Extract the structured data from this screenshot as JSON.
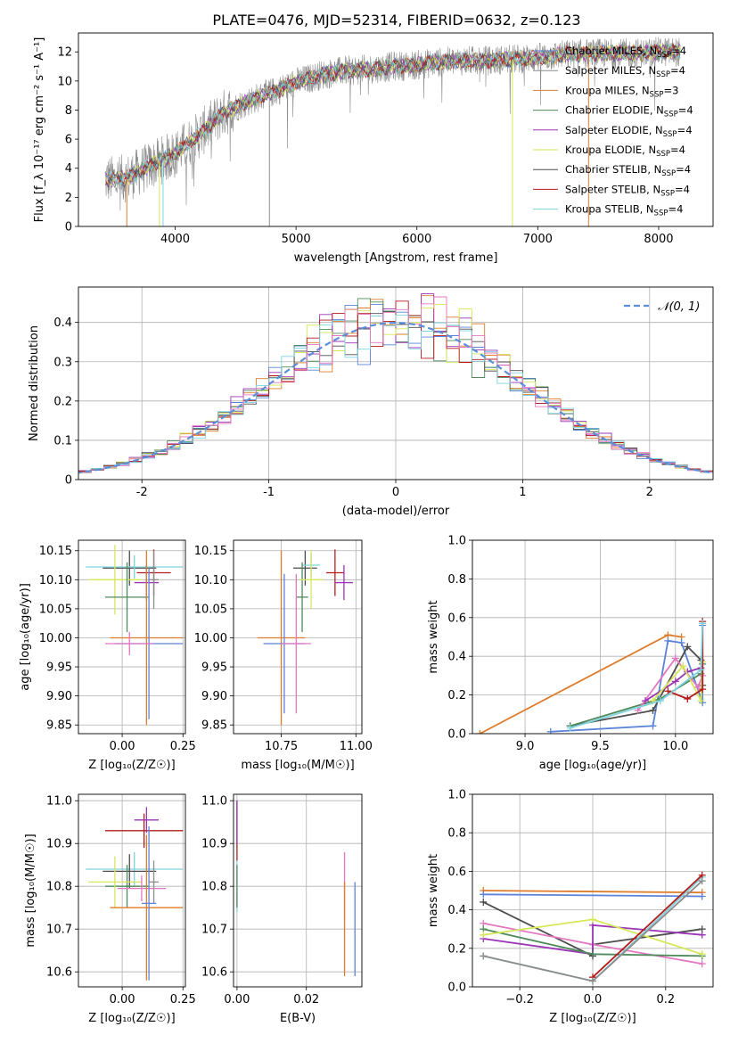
{
  "figure_title": "PLATE=0476, MJD=52314, FIBERID=0632, z=0.123",
  "colors": {
    "Chabrier MILES": "#5b84d8",
    "Salpeter MILES": "#8c8c8c",
    "Kroupa MILES": "#df7c2b",
    "Chabrier ELODIE": "#4e8a5c",
    "Salpeter ELODIE": "#9b35b5",
    "Kroupa ELODIE": "#d6e75a",
    "Chabrier STELIB": "#4d4d4d",
    "Salpeter STELIB": "#b41c1c",
    "Kroupa STELIB": "#7fd3dd",
    "Pink": "#e377c2",
    "Normal": "#5b8fd9"
  },
  "chart_data": [
    {
      "id": "spectrum",
      "type": "line",
      "title": "PLATE=0476, MJD=52314, FIBERID=0632, z=0.123",
      "xlabel": "wavelength [Angstrom, rest frame]",
      "ylabel": "Flux [f_λ 10⁻¹⁷ erg cm⁻² s⁻¹ A⁻¹]",
      "xlim": [
        3200,
        8450
      ],
      "ylim": [
        0,
        13.3
      ],
      "xticks": [
        4000,
        5000,
        6000,
        7000,
        8000
      ],
      "yticks": [
        0,
        2,
        4,
        6,
        8,
        10,
        12
      ],
      "legend_position": "top-right",
      "continuum": {
        "x": [
          3420,
          3600,
          3800,
          4000,
          4200,
          4400,
          4600,
          4800,
          5000,
          5200,
          5400,
          5600,
          5800,
          6000,
          6200,
          6400,
          6600,
          6800,
          7000,
          7200,
          7400,
          7600,
          7800,
          8000,
          8180
        ],
        "y": [
          3.2,
          3.3,
          4.2,
          5.0,
          6.3,
          7.8,
          8.6,
          9.2,
          9.9,
          10.4,
          10.7,
          10.8,
          11.0,
          11.1,
          11.3,
          11.4,
          11.4,
          11.5,
          11.6,
          11.8,
          11.9,
          11.9,
          11.9,
          12.0,
          12.0
        ]
      },
      "legend": [
        {
          "label": "Chabrier MILES, N",
          "sub": "SSP",
          "suffix": "=4",
          "color": "#5b84d8"
        },
        {
          "label": "Salpeter MILES, N",
          "sub": "SSP",
          "suffix": "=4",
          "color": "#8c8c8c"
        },
        {
          "label": "Kroupa MILES, N",
          "sub": "SSP",
          "suffix": "=3",
          "color": "#df7c2b"
        },
        {
          "label": "Chabrier ELODIE, N",
          "sub": "SSP",
          "suffix": "=4",
          "color": "#4e8a5c"
        },
        {
          "label": "Salpeter ELODIE, N",
          "sub": "SSP",
          "suffix": "=4",
          "color": "#9b35b5"
        },
        {
          "label": "Kroupa ELODIE, N",
          "sub": "SSP",
          "suffix": "=4",
          "color": "#d6e75a"
        },
        {
          "label": "Chabrier STELIB, N",
          "sub": "SSP",
          "suffix": "=4",
          "color": "#4d4d4d"
        },
        {
          "label": "Salpeter STELIB, N",
          "sub": "SSP",
          "suffix": "=4",
          "color": "#b41c1c"
        },
        {
          "label": "Kroupa STELIB, N",
          "sub": "SSP",
          "suffix": "=4",
          "color": "#7fd3dd"
        }
      ]
    },
    {
      "id": "residuals",
      "type": "area",
      "xlabel": "(data-model)/error",
      "ylabel": "Normed distribution",
      "xlim": [
        -2.5,
        2.5
      ],
      "ylim": [
        0,
        0.49
      ],
      "xticks": [
        -2,
        -1,
        0,
        1,
        2
      ],
      "yticks": [
        0.0,
        0.1,
        0.2,
        0.3,
        0.4
      ],
      "grid": true,
      "legend_position": "top-right",
      "legend_label": "𝒩(0, 1)",
      "bin_width": 0.1
    },
    {
      "id": "age-vs-Z",
      "type": "scatter",
      "xlabel": "Z [log₁₀(Z/Z☉)]",
      "ylabel": "age  [log₁₀(age/yr)]",
      "xlim": [
        -0.18,
        0.26
      ],
      "ylim": [
        9.835,
        10.168
      ],
      "xticks": [
        0.0,
        0.25
      ],
      "xticklabels": [
        "0.00",
        "0.25"
      ],
      "yticks": [
        9.85,
        9.9,
        9.95,
        10.0,
        10.05,
        10.1,
        10.15
      ],
      "yticklabels": [
        "9.85",
        "9.90",
        "9.95",
        "10.00",
        "10.05",
        "10.10",
        "10.15"
      ],
      "grid": true,
      "points": [
        {
          "x": 0.03,
          "y": 10.12,
          "xerr": 0.11,
          "yerr": 0.03,
          "color": "#4d4d4d"
        },
        {
          "x": 0.05,
          "y": 10.122,
          "xerr": 0.2,
          "yerr": 0.02,
          "color": "#7fd3dd"
        },
        {
          "x": 0.13,
          "y": 10.112,
          "xerr": 0.07,
          "yerr": 0.04,
          "color": "#b41c1c"
        },
        {
          "x": 0.1,
          "y": 10.095,
          "xerr": 0.05,
          "yerr": 0.03,
          "color": "#9b35b5"
        },
        {
          "x": -0.03,
          "y": 10.1,
          "xerr": 0.11,
          "yerr": 0.06,
          "color": "#d6e75a"
        },
        {
          "x": 0.02,
          "y": 10.07,
          "xerr": 0.09,
          "yerr": 0.06,
          "color": "#4e8a5c"
        },
        {
          "x": 0.13,
          "y": 10.1,
          "xerr": 0.02,
          "yerr": 0.05,
          "color": "#8c8c8c"
        },
        {
          "x": 0.1,
          "y": 10.0,
          "xerr": 0.15,
          "yerr": 0.15,
          "color": "#df7c2b"
        },
        {
          "x": 0.11,
          "y": 9.99,
          "xerr": 0.14,
          "yerr": 0.13,
          "color": "#5b84d8"
        },
        {
          "x": 0.03,
          "y": 9.99,
          "xerr": 0.1,
          "yerr": 0.02,
          "color": "#e377c2"
        }
      ]
    },
    {
      "id": "age-vs-mass",
      "type": "scatter",
      "xlabel": "mass [log₁₀(M/M☉)]",
      "ylabel": "",
      "xlim": [
        10.59,
        11.02
      ],
      "ylim": [
        9.835,
        10.168
      ],
      "xticks": [
        10.75,
        11.0
      ],
      "xticklabels": [
        "10.75",
        "11.00"
      ],
      "yticks": [
        9.85,
        9.9,
        9.95,
        10.0,
        10.05,
        10.1,
        10.15
      ],
      "yticklabels": [
        "9.85",
        "9.90",
        "9.95",
        "10.00",
        "10.05",
        "10.10",
        "10.15"
      ],
      "grid": true,
      "points": [
        {
          "x": 10.83,
          "y": 10.12,
          "xerr": 0.04,
          "yerr": 0.03,
          "color": "#4d4d4d"
        },
        {
          "x": 10.85,
          "y": 10.125,
          "xerr": 0.03,
          "yerr": 0.02,
          "color": "#7fd3dd"
        },
        {
          "x": 10.93,
          "y": 10.112,
          "xerr": 0.03,
          "yerr": 0.04,
          "color": "#b41c1c"
        },
        {
          "x": 10.96,
          "y": 10.095,
          "xerr": 0.03,
          "yerr": 0.03,
          "color": "#9b35b5"
        },
        {
          "x": 10.82,
          "y": 10.07,
          "xerr": 0.02,
          "yerr": 0.06,
          "color": "#4e8a5c"
        },
        {
          "x": 10.85,
          "y": 10.1,
          "xerr": 0.04,
          "yerr": 0.05,
          "color": "#d6e75a"
        },
        {
          "x": 10.75,
          "y": 10.0,
          "xerr": 0.08,
          "yerr": 0.15,
          "color": "#df7c2b"
        },
        {
          "x": 10.76,
          "y": 9.99,
          "xerr": 0.07,
          "yerr": 0.12,
          "color": "#5b84d8"
        },
        {
          "x": 10.8,
          "y": 9.99,
          "xerr": 0.05,
          "yerr": 0.12,
          "color": "#e377c2"
        }
      ]
    },
    {
      "id": "weights-vs-age",
      "type": "line",
      "xlabel": "age  [log₁₀(age/yr)]",
      "ylabel": "mass weight",
      "xlim": [
        8.65,
        10.25
      ],
      "ylim": [
        0.0,
        1.0
      ],
      "xticks": [
        9.0,
        9.5,
        10.0
      ],
      "xticklabels": [
        "9.0",
        "9.5",
        "10.0"
      ],
      "yticks": [
        0.0,
        0.2,
        0.4,
        0.6,
        0.8,
        1.0
      ],
      "yticklabels": [
        "0.0",
        "0.2",
        "0.4",
        "0.6",
        "0.8",
        "1.0"
      ],
      "grid": true,
      "series": [
        {
          "color": "#df7c2b",
          "x": [
            8.7,
            9.95,
            10.04
          ],
          "y": [
            0.0,
            0.51,
            0.5
          ]
        },
        {
          "color": "#5b84d8",
          "x": [
            9.17,
            9.85,
            9.95,
            10.04,
            10.18,
            10.18
          ],
          "y": [
            0.01,
            0.04,
            0.48,
            0.47,
            0.16,
            0.56
          ]
        },
        {
          "color": "#4d4d4d",
          "x": [
            9.3,
            9.85,
            10.08,
            10.17,
            10.18
          ],
          "y": [
            0.04,
            0.12,
            0.45,
            0.38,
            0.25
          ]
        },
        {
          "color": "#4e8a5c",
          "x": [
            9.3,
            9.9,
            10.17,
            10.18
          ],
          "y": [
            0.04,
            0.18,
            0.31,
            0.36
          ]
        },
        {
          "color": "#e377c2",
          "x": [
            9.75,
            10.0,
            10.15,
            10.18
          ],
          "y": [
            0.12,
            0.39,
            0.24,
            0.3
          ]
        },
        {
          "color": "#9b35b5",
          "x": [
            9.8,
            10.0,
            10.08,
            10.17
          ],
          "y": [
            0.17,
            0.27,
            0.32,
            0.34
          ]
        },
        {
          "color": "#d6e75a",
          "x": [
            9.85,
            10.05,
            10.17,
            10.18
          ],
          "y": [
            0.17,
            0.35,
            0.17,
            0.37
          ]
        },
        {
          "color": "#b41c1c",
          "x": [
            9.95,
            10.08,
            10.18,
            10.18
          ],
          "y": [
            0.22,
            0.18,
            0.23,
            0.58
          ]
        },
        {
          "color": "#7fd3dd",
          "x": [
            9.3,
            9.9,
            10.17,
            10.18
          ],
          "y": [
            0.03,
            0.17,
            0.33,
            0.57
          ]
        }
      ]
    },
    {
      "id": "mass-vs-Z",
      "type": "scatter",
      "xlabel": "Z [log₁₀(Z/Z☉)]",
      "ylabel": "mass [log₁₀(M/M☉)]",
      "xlim": [
        -0.18,
        0.26
      ],
      "ylim": [
        10.565,
        11.015
      ],
      "xticks": [
        0.0,
        0.25
      ],
      "xticklabels": [
        "0.00",
        "0.25"
      ],
      "yticks": [
        10.6,
        10.7,
        10.8,
        10.9,
        11.0
      ],
      "yticklabels": [
        "10.6",
        "10.7",
        "10.8",
        "10.9",
        "11.0"
      ],
      "grid": true,
      "points": [
        {
          "x": 0.09,
          "y": 10.93,
          "xerr": 0.16,
          "yerr": 0.04,
          "color": "#b41c1c"
        },
        {
          "x": 0.1,
          "y": 10.955,
          "xerr": 0.05,
          "yerr": 0.03,
          "color": "#9b35b5"
        },
        {
          "x": 0.05,
          "y": 10.84,
          "xerr": 0.2,
          "yerr": 0.04,
          "color": "#7fd3dd"
        },
        {
          "x": 0.03,
          "y": 10.835,
          "xerr": 0.11,
          "yerr": 0.04,
          "color": "#4d4d4d"
        },
        {
          "x": 0.02,
          "y": 10.8,
          "xerr": 0.09,
          "yerr": 0.05,
          "color": "#4e8a5c"
        },
        {
          "x": -0.03,
          "y": 10.81,
          "xerr": 0.11,
          "yerr": 0.06,
          "color": "#d6e75a"
        },
        {
          "x": 0.13,
          "y": 10.81,
          "xerr": 0.02,
          "yerr": 0.05,
          "color": "#8c8c8c"
        },
        {
          "x": 0.08,
          "y": 10.795,
          "xerr": 0.1,
          "yerr": 0.03,
          "color": "#e377c2"
        },
        {
          "x": 0.1,
          "y": 10.75,
          "xerr": 0.15,
          "yerr": 0.17,
          "color": "#df7c2b"
        },
        {
          "x": 0.11,
          "y": 10.76,
          "xerr": 0.03,
          "yerr": 0.18,
          "color": "#5b84d8"
        }
      ]
    },
    {
      "id": "mass-vs-ebv",
      "type": "scatter",
      "xlabel": "E(B-V)",
      "ylabel": "",
      "xlim": [
        -0.001,
        0.036
      ],
      "ylim": [
        10.565,
        11.015
      ],
      "xticks": [
        0.0,
        0.02
      ],
      "xticklabels": [
        "0.00",
        "0.02"
      ],
      "yticks": [
        10.6,
        10.7,
        10.8,
        10.9,
        11.0
      ],
      "yticklabels": [
        "10.6",
        "10.7",
        "10.8",
        "10.9",
        "11.0"
      ],
      "grid": true,
      "points": [
        {
          "x": 0.0,
          "y": 10.93,
          "xerr": 0.0,
          "yerr": 0.07,
          "color": "#b41c1c"
        },
        {
          "x": 0.0,
          "y": 10.95,
          "xerr": 0.0,
          "yerr": 0.05,
          "color": "#9b35b5"
        },
        {
          "x": 0.0,
          "y": 10.8,
          "xerr": 0.0,
          "yerr": 0.06,
          "color": "#7fd3dd"
        },
        {
          "x": 0.0,
          "y": 10.8,
          "xerr": 0.0,
          "yerr": 0.05,
          "color": "#4e8a5c"
        },
        {
          "x": 0.031,
          "y": 10.8,
          "xerr": 0.0,
          "yerr": 0.08,
          "color": "#e377c2"
        },
        {
          "x": 0.031,
          "y": 10.7,
          "xerr": 0.0,
          "yerr": 0.11,
          "color": "#df7c2b"
        },
        {
          "x": 0.034,
          "y": 10.7,
          "xerr": 0.0,
          "yerr": 0.11,
          "color": "#5b84d8"
        }
      ]
    },
    {
      "id": "weights-vs-Z",
      "type": "line",
      "xlabel": "Z [log₁₀(Z/Z☉)]",
      "ylabel": "mass weight",
      "xlim": [
        -0.33,
        0.33
      ],
      "ylim": [
        0.0,
        1.0
      ],
      "xticks": [
        -0.2,
        0.0,
        0.2
      ],
      "xticklabels": [
        "−0.2",
        "0.0",
        "0.2"
      ],
      "yticks": [
        0.0,
        0.2,
        0.4,
        0.6,
        0.8,
        1.0
      ],
      "yticklabels": [
        "0.0",
        "0.2",
        "0.4",
        "0.6",
        "0.8",
        "1.0"
      ],
      "grid": true,
      "series": [
        {
          "color": "#df7c2b",
          "x": [
            -0.3,
            0.3
          ],
          "y": [
            0.5,
            0.49
          ]
        },
        {
          "color": "#5b84d8",
          "x": [
            -0.3,
            0.3
          ],
          "y": [
            0.48,
            0.47
          ]
        },
        {
          "color": "#4d4d4d",
          "x": [
            -0.3,
            0.0,
            0.0,
            0.3
          ],
          "y": [
            0.44,
            0.16,
            0.22,
            0.3
          ]
        },
        {
          "color": "#e377c2",
          "x": [
            -0.3,
            0.0,
            0.3
          ],
          "y": [
            0.33,
            0.22,
            0.12
          ]
        },
        {
          "color": "#9b35b5",
          "x": [
            -0.3,
            0.0,
            0.0,
            0.3
          ],
          "y": [
            0.25,
            0.17,
            0.32,
            0.27
          ]
        },
        {
          "color": "#4e8a5c",
          "x": [
            -0.3,
            0.0,
            0.3
          ],
          "y": [
            0.3,
            0.17,
            0.16
          ]
        },
        {
          "color": "#d6e75a",
          "x": [
            -0.3,
            0.0,
            0.3
          ],
          "y": [
            0.27,
            0.35,
            0.17
          ]
        },
        {
          "color": "#7fd3dd",
          "x": [
            -0.3,
            0.0,
            0.3
          ],
          "y": [
            0.16,
            0.03,
            0.57
          ]
        },
        {
          "color": "#b41c1c",
          "x": [
            0.0,
            0.3
          ],
          "y": [
            0.05,
            0.58
          ]
        },
        {
          "color": "#8c8c8c",
          "x": [
            -0.3,
            0.0,
            0.3
          ],
          "y": [
            0.16,
            0.03,
            0.55
          ]
        }
      ]
    }
  ]
}
